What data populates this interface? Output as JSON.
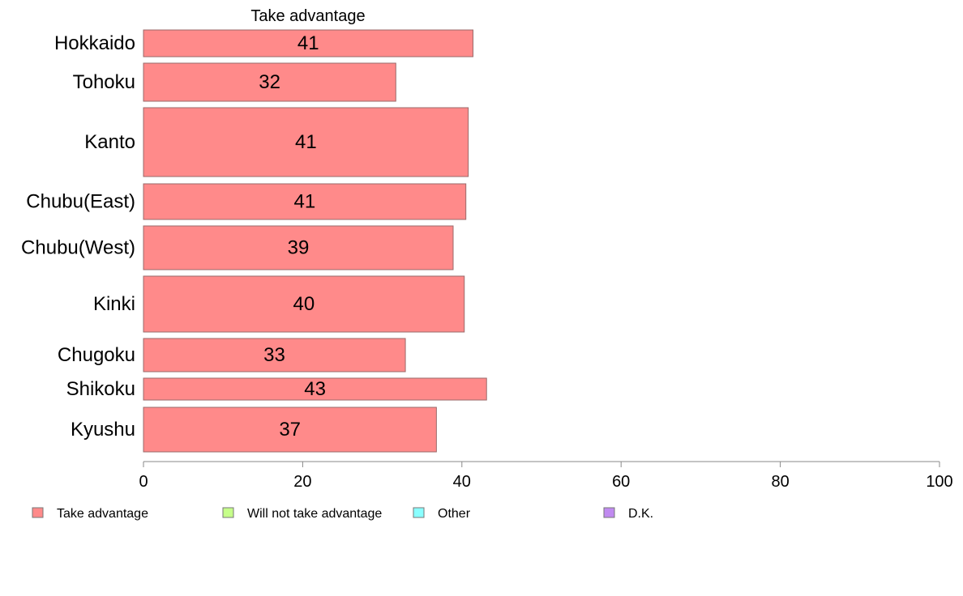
{
  "chart_data": {
    "type": "bar",
    "orientation": "horizontal",
    "panel_title": "Take advantage",
    "categories": [
      "Hokkaido",
      "Tohoku",
      "Kanto",
      "Chubu(East)",
      "Chubu(West)",
      "Kinki",
      "Chugoku",
      "Shikoku",
      "Kyushu"
    ],
    "series": [
      {
        "name": "Take advantage",
        "values": [
          41.4,
          31.7,
          40.8,
          40.5,
          38.9,
          40.3,
          32.9,
          43.1,
          36.8
        ],
        "labels": [
          "41",
          "32",
          "41",
          "41",
          "39",
          "40",
          "33",
          "43",
          "37"
        ],
        "color": "#ff8a8a"
      }
    ],
    "xlim": [
      0,
      100
    ],
    "xticks": [
      0,
      20,
      40,
      60,
      80,
      100
    ],
    "legend": {
      "placement": "bottom",
      "entries": [
        {
          "label": "Take advantage",
          "color": "#ff8a8a"
        },
        {
          "label": "Will not take advantage",
          "color": "#c6ff8a"
        },
        {
          "label": "Other",
          "color": "#8affff"
        },
        {
          "label": "D.K.",
          "color": "#c08af0"
        }
      ]
    }
  }
}
